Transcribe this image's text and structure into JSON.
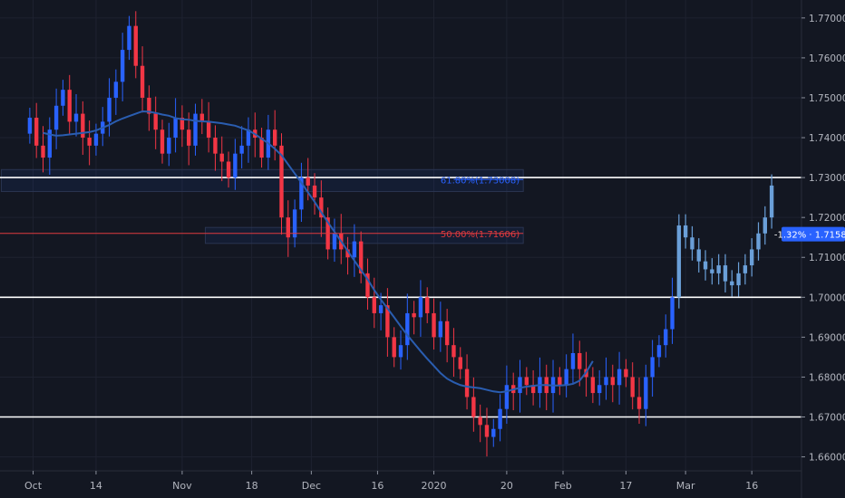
{
  "chart_data": {
    "type": "candlestick",
    "ylim": [
      1.6565,
      1.7745
    ],
    "y_ticks": [
      "1.77000",
      "1.76000",
      "1.75000",
      "1.74000",
      "1.73000",
      "1.72000",
      "1.71000",
      "1.70000",
      "1.69000",
      "1.68000",
      "1.67000",
      "1.66000"
    ],
    "y_tick_values": [
      1.77,
      1.76,
      1.75,
      1.74,
      1.73,
      1.72,
      1.71,
      1.7,
      1.69,
      1.68,
      1.67,
      1.66
    ],
    "x_labels": [
      "Oct",
      "14",
      "Nov",
      "18",
      "Dec",
      "16",
      "2020",
      "20",
      "Feb",
      "17",
      "Mar",
      "16"
    ],
    "x_label_positions": [
      0.5,
      10,
      23,
      33.5,
      42.5,
      52.5,
      61,
      72,
      80.5,
      90,
      99,
      109
    ],
    "x_range": [
      -4.5,
      116.5
    ],
    "horizontal_levels": [
      1.73,
      1.7,
      1.67
    ],
    "fib_levels": [
      {
        "label": "61.80%(1.73008)",
        "value": 1.7295,
        "color": "#2962ff"
      },
      {
        "label": "50.00%(1.71606)",
        "value": 1.716,
        "color": "#e03a3e"
      }
    ],
    "zones": [
      {
        "y_top": 1.732,
        "y_bottom": 1.7265
      },
      {
        "y_top": 1.7175,
        "y_bottom": 1.7135
      }
    ],
    "price_tag": {
      "text": "-1.32% · 1.71580",
      "value": 1.7158
    },
    "colors": {
      "up": "#2962ff",
      "down": "#f23645",
      "ma": "#2a5db0",
      "projection": "#6a9fd8",
      "grid": "#1e2230",
      "level": "#ffffff"
    },
    "candles_close": [
      1.745,
      1.738,
      1.735,
      1.742,
      1.748,
      1.752,
      1.744,
      1.746,
      1.74,
      1.738,
      1.741,
      1.744,
      1.75,
      1.754,
      1.762,
      1.768,
      1.758,
      1.75,
      1.746,
      1.742,
      1.736,
      1.74,
      1.745,
      1.742,
      1.738,
      1.746,
      1.744,
      1.74,
      1.736,
      1.734,
      1.73,
      1.736,
      1.738,
      1.742,
      1.74,
      1.735,
      1.742,
      1.738,
      1.72,
      1.715,
      1.722,
      1.73,
      1.728,
      1.725,
      1.72,
      1.712,
      1.716,
      1.712,
      1.71,
      1.714,
      1.706,
      1.7,
      1.696,
      1.698,
      1.69,
      1.685,
      1.688,
      1.696,
      1.695,
      1.7,
      1.696,
      1.69,
      1.694,
      1.688,
      1.685,
      1.682,
      1.675,
      1.67,
      1.668,
      1.665,
      1.667,
      1.672,
      1.678,
      1.676,
      1.68,
      1.678,
      1.676,
      1.68,
      1.676,
      1.68,
      1.678,
      1.682,
      1.686,
      1.682,
      1.68,
      1.676,
      1.678,
      1.68,
      1.678,
      1.682,
      1.68,
      1.675,
      1.672,
      1.68,
      1.685,
      1.688,
      1.692,
      1.7
    ],
    "ma_values": [
      1.7412,
      1.7408,
      1.7405,
      1.7406,
      1.7408,
      1.741,
      1.7412,
      1.7414,
      1.7418,
      1.7425,
      1.7432,
      1.7441,
      1.7448,
      1.7454,
      1.746,
      1.7466,
      1.7465,
      1.7462,
      1.7458,
      1.7455,
      1.7449,
      1.7446,
      1.7445,
      1.7442,
      1.7441,
      1.744,
      1.7438,
      1.7436,
      1.7433,
      1.743,
      1.7424,
      1.7418,
      1.7409,
      1.7397,
      1.7386,
      1.7372,
      1.7356,
      1.7333,
      1.731,
      1.7287,
      1.7263,
      1.7239,
      1.7213,
      1.7188,
      1.7164,
      1.714,
      1.7116,
      1.7092,
      1.7068,
      1.7045,
      1.7018,
      1.6994,
      1.6972,
      1.695,
      1.6927,
      1.6905,
      1.6885,
      1.6865,
      1.6846,
      1.6828,
      1.681,
      1.6796,
      1.6787,
      1.678,
      1.6776,
      1.6774,
      1.6772,
      1.6768,
      1.6764,
      1.6762,
      1.6764,
      1.6769,
      1.6773,
      1.6776,
      1.6778,
      1.678,
      1.678,
      1.6779,
      1.6779,
      1.678,
      1.6783,
      1.6791,
      1.6812,
      1.684
    ],
    "projection_close": [
      1.718,
      1.715,
      1.712,
      1.709,
      1.707,
      1.706,
      1.708,
      1.704,
      1.703,
      1.706,
      1.708,
      1.712,
      1.716,
      1.72,
      1.728
    ]
  }
}
